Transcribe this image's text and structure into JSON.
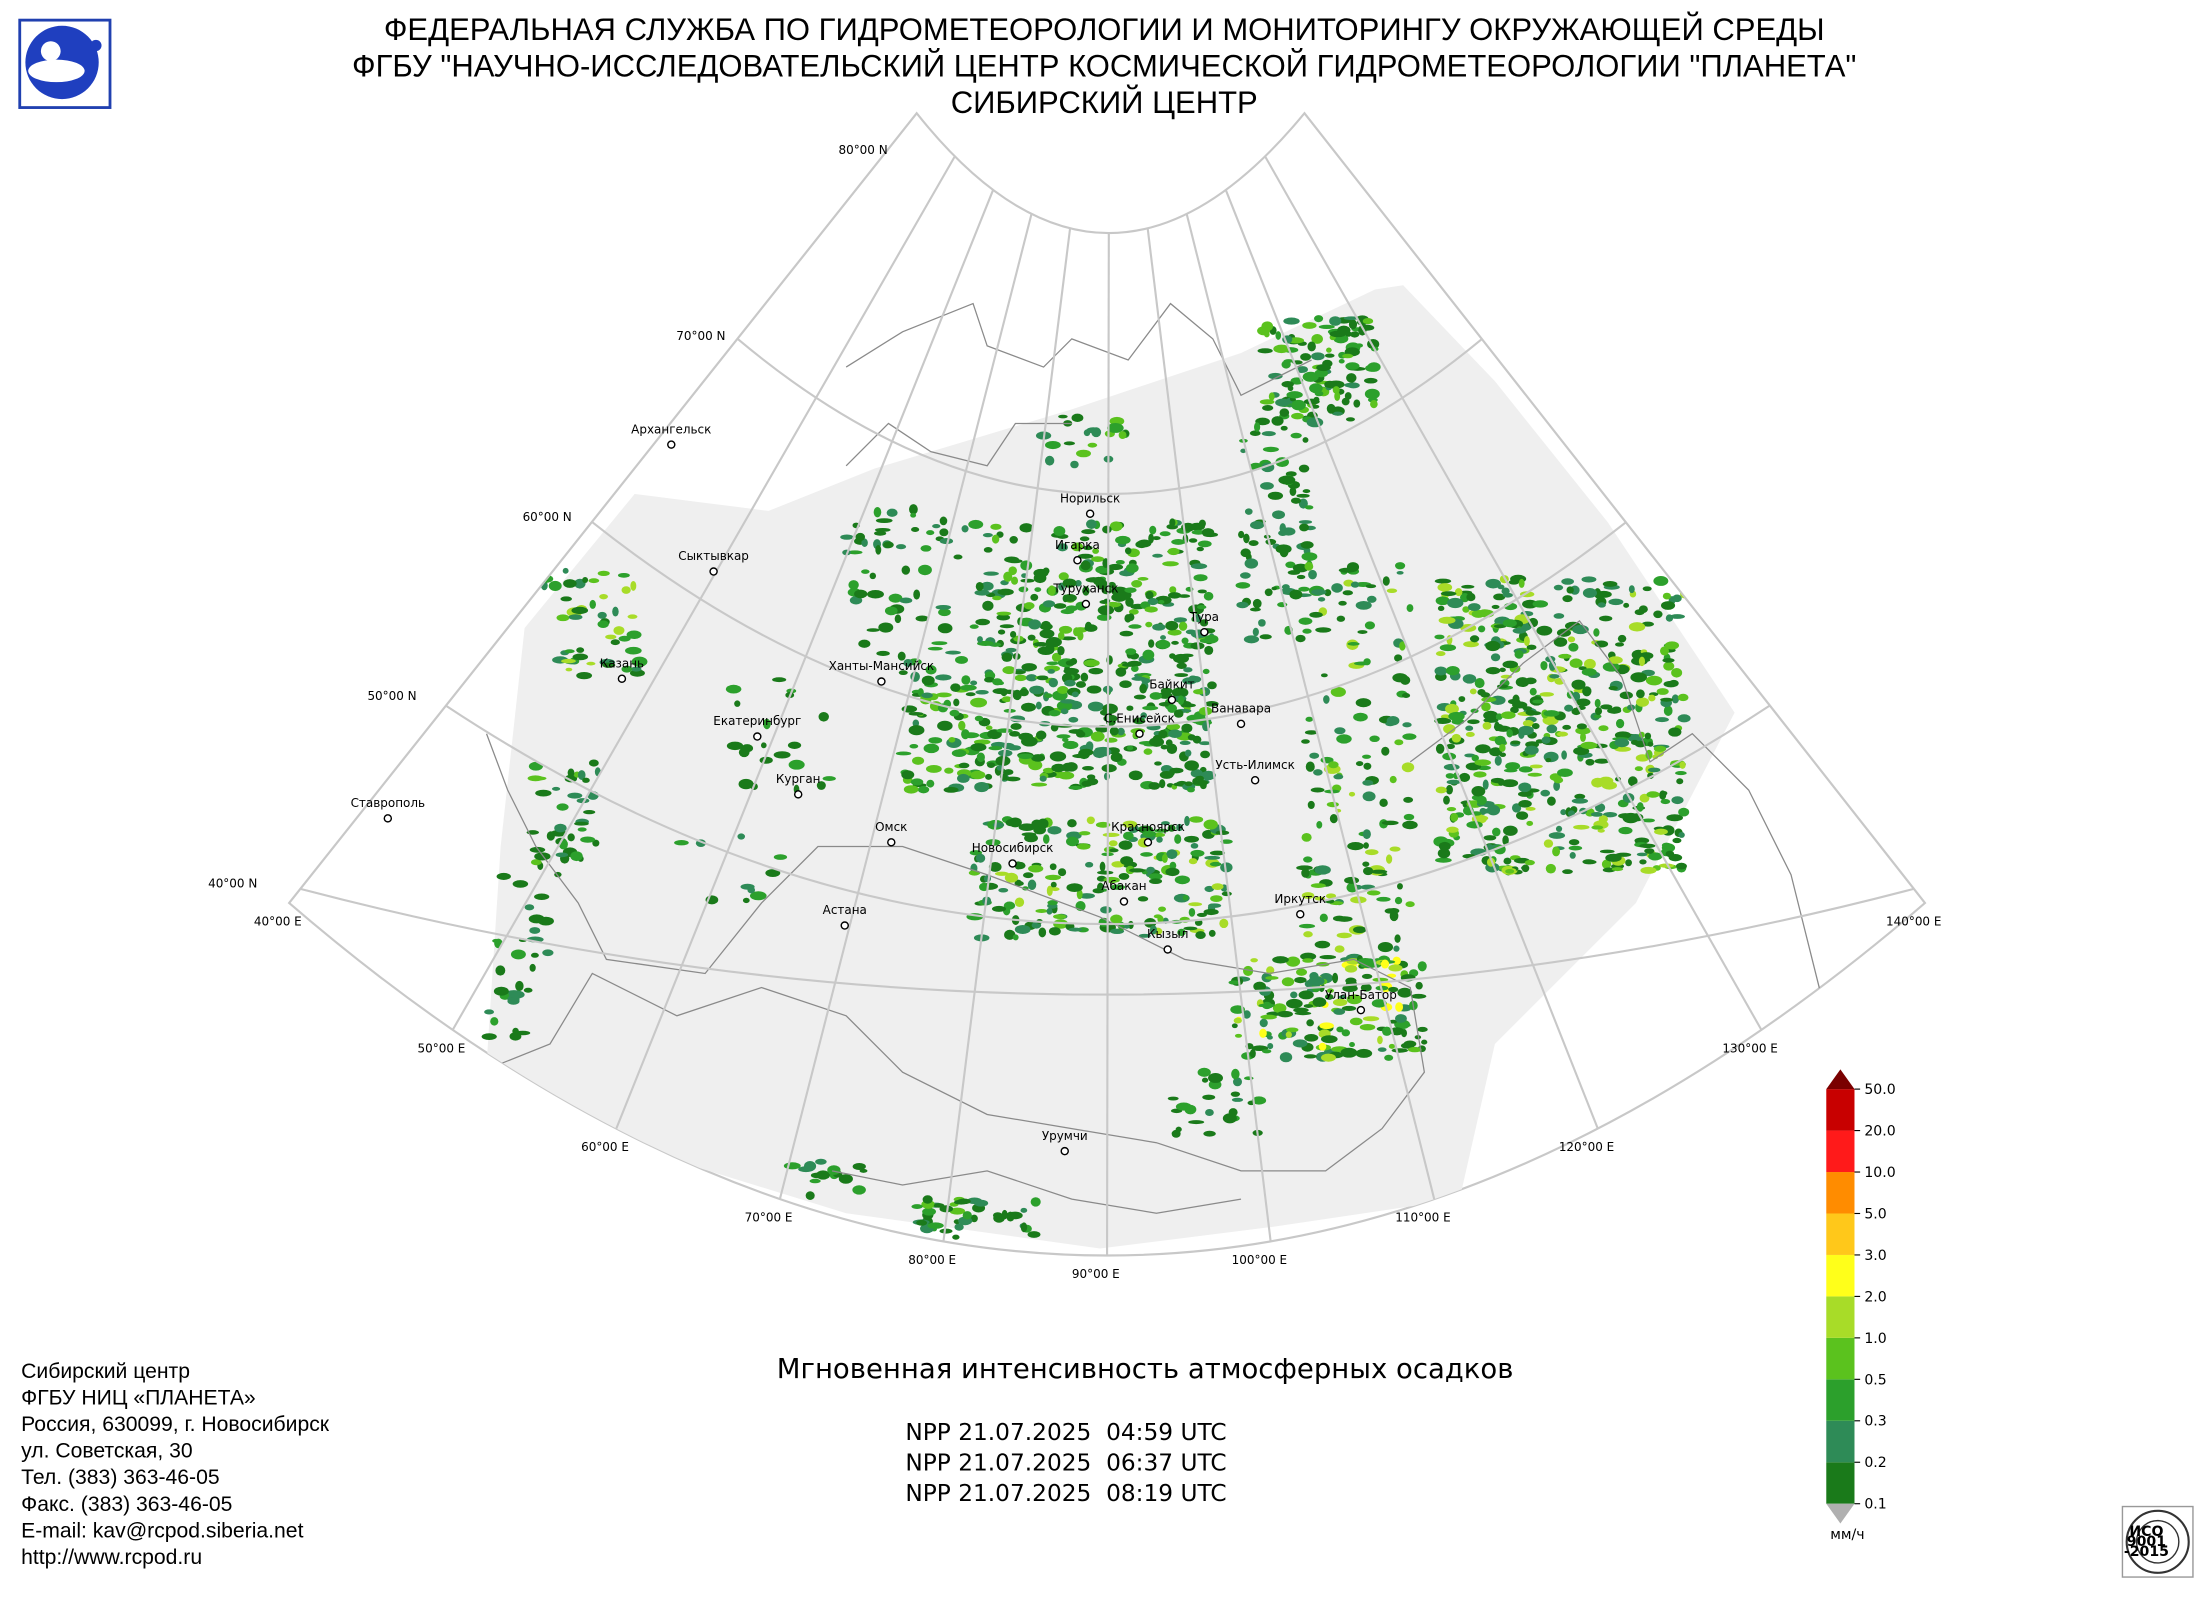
{
  "header": {
    "lines": [
      "ФЕДЕРАЛЬНАЯ СЛУЖБА ПО ГИДРОМЕТЕОРОЛОГИИ И МОНИТОРИНГУ ОКРУЖАЮЩЕЙ СРЕДЫ",
      "ФГБУ \"НАУЧНО-ИССЛЕДОВАТЕЛЬСКИЙ ЦЕНТР КОСМИЧЕСКОЙ ГИДРОМЕТЕОРОЛОГИИ \"ПЛАНЕТА\"",
      "СИБИРСКИЙ ЦЕНТР"
    ]
  },
  "map": {
    "latitude_labels": [
      "80°00 N",
      "70°00 N",
      "60°00 N",
      "50°00 N",
      "40°00 N"
    ],
    "longitude_labels": [
      "40°00 E",
      "50°00 E",
      "60°00 E",
      "70°00 E",
      "80°00 E",
      "90°00 E",
      "100°00 E",
      "110°00 E",
      "120°00 E",
      "130°00 E",
      "140°00 E"
    ],
    "cities": [
      "Архангельск",
      "Сыктывкар",
      "Казань",
      "Ставрополь",
      "Екатеринбург",
      "Курган",
      "Ханты-Мансийск",
      "Омск",
      "Астана",
      "Новосибирск",
      "Норильск",
      "Игарка",
      "Туруханск",
      "Тура",
      "Байкит",
      "Ванавара",
      "С.Енисейск",
      "Усть-Илимск",
      "Красноярск",
      "Абакан",
      "Иркутск",
      "Кызыл",
      "Улан-Батор",
      "Урумчи"
    ]
  },
  "product": {
    "title": "Мгновенная интенсивность атмосферных осадков",
    "passes": [
      "NPP 21.07.2025  04:59 UTC",
      "NPP 21.07.2025  06:37 UTC",
      "NPP 21.07.2025  08:19 UTC"
    ]
  },
  "contact": {
    "lines": [
      "Сибирский центр",
      "ФГБУ НИЦ «ПЛАНЕТА»",
      "Россия, 630099, г. Новосибирск",
      "ул. Советская, 30",
      "Тел. (383) 363-46-05",
      "Факс. (383) 363-46-05",
      "E-mail: kav@rcpod.siberia.net",
      "http://www.rcpod.ru"
    ]
  },
  "colorbar": {
    "ticks": [
      0.1,
      0.2,
      0.3,
      0.5,
      {
        "value": 1,
        "label": "1.0"
      },
      {
        "value": 2,
        "label": "2.0"
      },
      {
        "value": 3,
        "label": "3.0"
      },
      {
        "value": 5,
        "label": "5.0"
      },
      {
        "value": 10,
        "label": "10.0"
      },
      {
        "value": 20,
        "label": "20.0"
      },
      {
        "value": 50,
        "label": "50.0"
      }
    ],
    "colors": [
      "#1a7a1a",
      "#2e8b57",
      "#2ca02c",
      "#5bc21e",
      "#a8dc28",
      "#ffff1a",
      "#ffc81a",
      "#ff8c00",
      "#ff1a1a",
      "#c80000"
    ],
    "over_color": "#7a0000",
    "under_color": "#b0b0b0",
    "unit": "мм/ч"
  },
  "iso": {
    "lines": [
      "ИСО",
      "9001",
      "-2015"
    ]
  }
}
